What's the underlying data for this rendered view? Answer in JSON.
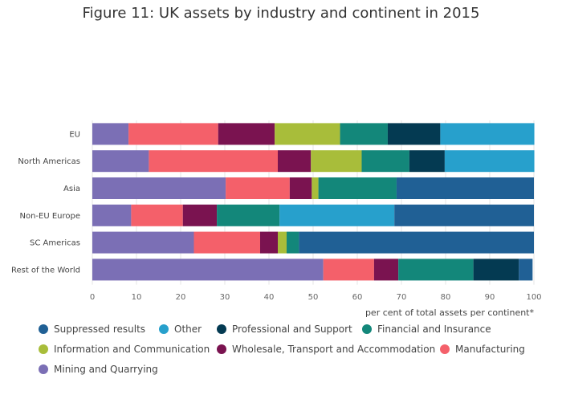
{
  "chart_data": {
    "type": "bar",
    "orientation": "horizontal",
    "stacked": true,
    "title": "Figure 11: UK assets by industry and continent in 2015",
    "xlabel": "per cent of total assets per continent*",
    "xlim": [
      0,
      100
    ],
    "xticks": [
      "0",
      "10",
      "20",
      "30",
      "40",
      "50",
      "60",
      "70",
      "80",
      "90",
      "100"
    ],
    "categories": [
      "EU",
      "North Americas",
      "Asia",
      "Non-EU Europe",
      "SC Americas",
      "Rest of the World"
    ],
    "series": [
      {
        "name": "Mining and Quarrying",
        "color": "#7b6fb5",
        "values": [
          8.2,
          12.8,
          30.2,
          8.8,
          23.0,
          52.3
        ]
      },
      {
        "name": "Manufacturing",
        "color": "#f4606a",
        "values": [
          20.3,
          29.2,
          14.5,
          11.7,
          15.0,
          11.5
        ]
      },
      {
        "name": "Wholesale, Transport and Accommodation",
        "color": "#7a1350",
        "values": [
          12.8,
          7.5,
          5.0,
          7.7,
          4.0,
          5.5
        ]
      },
      {
        "name": "Information and Communication",
        "color": "#a8bd3a",
        "values": [
          14.8,
          11.5,
          1.5,
          0.0,
          2.0,
          0.0
        ]
      },
      {
        "name": "Financial and Insurance",
        "color": "#13877a",
        "values": [
          10.8,
          10.8,
          17.7,
          14.2,
          2.8,
          17.0
        ]
      },
      {
        "name": "Professional and Support",
        "color": "#043a52",
        "values": [
          11.9,
          8.0,
          0.0,
          0.0,
          0.0,
          10.3
        ]
      },
      {
        "name": "Other",
        "color": "#27a0cc",
        "values": [
          21.3,
          20.3,
          0.0,
          26.0,
          0.0,
          0.0
        ]
      },
      {
        "name": "Suppressed results",
        "color": "#206095",
        "values": [
          0.0,
          0.0,
          31.1,
          31.6,
          53.2,
          3.1
        ]
      }
    ],
    "legend_order": [
      "Suppressed results",
      "Other",
      "Professional and Support",
      "Financial and Insurance",
      "Information and Communication",
      "Wholesale, Transport and Accommodation",
      "Manufacturing",
      "Mining and Quarrying"
    ],
    "legend_position": "bottom",
    "grid": true
  }
}
